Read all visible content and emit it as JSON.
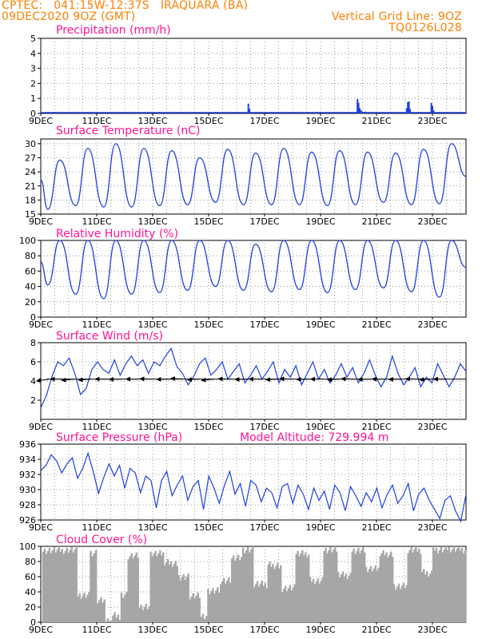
{
  "header": {
    "line1_left": "CPTEC:   041:15W-12:37S   IRAQUARA (BA)",
    "line2_left": "09DEC2020 9OZ (GMT)",
    "line1_right": "Vertical Grid Line: 9OZ",
    "line2_right": "TQ0126L028"
  },
  "colors": {
    "header": "#ff7f00",
    "title": "#ff1493",
    "series": "#1f3fe0",
    "cloud": "#a6a6a6",
    "wind_arrow": "#000000"
  },
  "x_axis": {
    "labels": [
      "9DEC",
      "11DEC",
      "13DEC",
      "15DEC",
      "17DEC",
      "19DEC",
      "21DEC",
      "23DEC"
    ],
    "start_day": 9,
    "end_day": 24.2,
    "label_step_days": 2
  },
  "chart_data": [
    {
      "id": "precip",
      "type": "bar",
      "title": "Precipitation (mm/h)",
      "ylim": [
        0,
        5
      ],
      "yticks": [
        0,
        1,
        2,
        3,
        4,
        5
      ],
      "bars": [
        {
          "day": 16.42,
          "value": 0.65
        },
        {
          "day": 16.46,
          "value": 0.3
        },
        {
          "day": 20.32,
          "value": 0.95
        },
        {
          "day": 20.36,
          "value": 0.7
        },
        {
          "day": 20.4,
          "value": 0.35
        },
        {
          "day": 20.46,
          "value": 0.2
        },
        {
          "day": 20.6,
          "value": 0.12
        },
        {
          "day": 22.08,
          "value": 0.35
        },
        {
          "day": 22.12,
          "value": 0.75
        },
        {
          "day": 22.16,
          "value": 0.8
        },
        {
          "day": 22.2,
          "value": 0.3
        },
        {
          "day": 22.96,
          "value": 0.7
        },
        {
          "day": 23.0,
          "value": 0.5
        },
        {
          "day": 23.04,
          "value": 0.2
        }
      ]
    },
    {
      "id": "temp",
      "type": "line",
      "title": "Surface Temperature (nC)",
      "ylim": [
        15,
        31
      ],
      "yticks": [
        15,
        18,
        21,
        24,
        27,
        30
      ],
      "maxima": [
        26.5,
        29,
        30,
        29,
        28.5,
        27,
        28.8,
        28,
        29,
        28.2,
        28.5,
        28.2,
        28,
        28.8,
        30,
        28.5
      ],
      "minima": [
        16,
        16.8,
        16.5,
        16.5,
        16.8,
        17,
        17.5,
        17,
        17,
        17,
        16.8,
        17,
        17.5,
        17,
        17.2,
        17.5
      ]
    },
    {
      "id": "rh",
      "type": "line",
      "title": "Relative Humidity (%)",
      "ylim": [
        0,
        100
      ],
      "yticks": [
        0,
        20,
        40,
        60,
        80,
        100
      ],
      "maxima": [
        100,
        100,
        100,
        100,
        100,
        100,
        100,
        95,
        100,
        100,
        100,
        100,
        100,
        100,
        100,
        100
      ],
      "minima": [
        42,
        30,
        24,
        30,
        32,
        35,
        40,
        35,
        33,
        36,
        32,
        36,
        38,
        33,
        26,
        30
      ]
    },
    {
      "id": "wind",
      "type": "line",
      "title": "Surface Wind (m/s)",
      "ylim": [
        0,
        8
      ],
      "yticks": [
        2,
        4,
        6,
        8
      ],
      "values": [
        1.2,
        2.5,
        4.5,
        6,
        5.6,
        6.4,
        4.8,
        2.6,
        3.2,
        5.2,
        6,
        5.2,
        4.8,
        6.2,
        4.6,
        5.8,
        6.6,
        5.6,
        6.2,
        4.8,
        6,
        5.6,
        6.6,
        7.4,
        5.5,
        4.8,
        3.6,
        4.5,
        5.8,
        6.4,
        4.6,
        5.2,
        6,
        4.2,
        5,
        5.8,
        3.8,
        4.6,
        5.6,
        4.2,
        5,
        6,
        3.8,
        5.2,
        4.4,
        5.6,
        3.6,
        4.8,
        6,
        4.2,
        5.2,
        3.8,
        4.6,
        5.8,
        4.4,
        5.4,
        3.8,
        4.8,
        6.2,
        4.6,
        3.4,
        4.4,
        6.6,
        4.8,
        3.6,
        4.4,
        5.4,
        3.4,
        4.4,
        3.8,
        5.8,
        4.6,
        3.4,
        4.4,
        5.8,
        5
      ],
      "vectors": [
        {
          "day": 9.3,
          "dir": 210
        },
        {
          "day": 9.8,
          "dir": 180
        },
        {
          "day": 10.2,
          "dir": 200
        },
        {
          "day": 10.8,
          "dir": 195
        },
        {
          "day": 11.4,
          "dir": 180
        },
        {
          "day": 11.9,
          "dir": 185
        },
        {
          "day": 12.5,
          "dir": 180
        },
        {
          "day": 13.0,
          "dir": 175
        },
        {
          "day": 13.6,
          "dir": 185
        },
        {
          "day": 14.1,
          "dir": 170
        },
        {
          "day": 14.7,
          "dir": 190
        },
        {
          "day": 15.2,
          "dir": 200
        },
        {
          "day": 15.8,
          "dir": 175
        },
        {
          "day": 16.4,
          "dir": 185
        },
        {
          "day": 16.9,
          "dir": 180
        },
        {
          "day": 17.5,
          "dir": 190
        },
        {
          "day": 18.0,
          "dir": 175
        },
        {
          "day": 18.6,
          "dir": 185
        },
        {
          "day": 19.1,
          "dir": 180
        },
        {
          "day": 19.7,
          "dir": 190
        },
        {
          "day": 20.2,
          "dir": 175
        },
        {
          "day": 20.8,
          "dir": 185
        },
        {
          "day": 21.3,
          "dir": 180
        },
        {
          "day": 21.9,
          "dir": 185
        },
        {
          "day": 22.5,
          "dir": 175
        },
        {
          "day": 23.0,
          "dir": 190
        },
        {
          "day": 23.5,
          "dir": 180
        }
      ]
    },
    {
      "id": "pressure",
      "type": "line",
      "title": "Surface Pressure (hPa)",
      "annotation": "Model Altitude: 729.994 m",
      "ylim": [
        926,
        936
      ],
      "yticks": [
        926,
        928,
        930,
        932,
        934,
        936
      ],
      "values": [
        932.5,
        933.2,
        934.6,
        933.8,
        932.2,
        933.4,
        934.2,
        931.5,
        932.8,
        934.8,
        932.4,
        929.5,
        931.6,
        933.4,
        931.8,
        933.2,
        930.2,
        932.8,
        932.2,
        929.6,
        931.8,
        931.2,
        927.6,
        931.2,
        932.4,
        929.2,
        930.6,
        931.8,
        928.6,
        930.4,
        931.2,
        927.4,
        931.8,
        930.2,
        928.2,
        930.6,
        932.4,
        929.4,
        930.8,
        927.8,
        931.2,
        930.6,
        928.4,
        930.2,
        929.6,
        927.6,
        930.4,
        930.8,
        928.2,
        930.6,
        929.4,
        927.4,
        930.2,
        928.6,
        929.8,
        927.4,
        930.6,
        929.6,
        927.2,
        930.4,
        929.2,
        927.8,
        929.6,
        928.4,
        930.2,
        927.6,
        929.4,
        930.6,
        928.2,
        929.2,
        930.8,
        927.2,
        929.4,
        930.2,
        928.6,
        927.4,
        926.2,
        928.6,
        929.2,
        927.2,
        925.8,
        929.4
      ]
    },
    {
      "id": "cloud",
      "type": "area",
      "title": "Cloud Cover (%)",
      "ylim": [
        0,
        100
      ],
      "yticks": [
        0,
        20,
        40,
        60,
        80,
        100
      ],
      "segments": [
        {
          "from": 9.05,
          "to": 10.3,
          "value": 95
        },
        {
          "from": 10.3,
          "to": 10.75,
          "value": 35
        },
        {
          "from": 10.75,
          "to": 11.0,
          "value": 90
        },
        {
          "from": 11.0,
          "to": 11.3,
          "value": 30
        },
        {
          "from": 11.3,
          "to": 11.55,
          "value": 3
        },
        {
          "from": 11.55,
          "to": 11.85,
          "value": 8
        },
        {
          "from": 11.85,
          "to": 12.1,
          "value": 35
        },
        {
          "from": 12.1,
          "to": 12.5,
          "value": 88
        },
        {
          "from": 12.5,
          "to": 12.9,
          "value": 20
        },
        {
          "from": 12.9,
          "to": 13.4,
          "value": 90
        },
        {
          "from": 13.4,
          "to": 13.9,
          "value": 78
        },
        {
          "from": 13.9,
          "to": 14.3,
          "value": 60
        },
        {
          "from": 14.3,
          "to": 14.7,
          "value": 35
        },
        {
          "from": 14.7,
          "to": 14.95,
          "value": 8
        },
        {
          "from": 14.95,
          "to": 15.4,
          "value": 42
        },
        {
          "from": 15.4,
          "to": 15.8,
          "value": 55
        },
        {
          "from": 15.8,
          "to": 16.2,
          "value": 85
        },
        {
          "from": 16.2,
          "to": 16.6,
          "value": 95
        },
        {
          "from": 16.6,
          "to": 17.1,
          "value": 50
        },
        {
          "from": 17.1,
          "to": 17.6,
          "value": 75
        },
        {
          "from": 17.6,
          "to": 18.1,
          "value": 45
        },
        {
          "from": 18.1,
          "to": 18.6,
          "value": 90
        },
        {
          "from": 18.6,
          "to": 19.1,
          "value": 55
        },
        {
          "from": 19.1,
          "to": 19.6,
          "value": 95
        },
        {
          "from": 19.6,
          "to": 20.1,
          "value": 62
        },
        {
          "from": 20.1,
          "to": 20.6,
          "value": 95
        },
        {
          "from": 20.6,
          "to": 21.1,
          "value": 70
        },
        {
          "from": 21.1,
          "to": 21.6,
          "value": 90
        },
        {
          "from": 21.6,
          "to": 22.1,
          "value": 48
        },
        {
          "from": 22.1,
          "to": 22.6,
          "value": 95
        },
        {
          "from": 22.6,
          "to": 23.0,
          "value": 65
        },
        {
          "from": 23.0,
          "to": 23.5,
          "value": 96
        },
        {
          "from": 23.5,
          "to": 24.2,
          "value": 96
        }
      ]
    }
  ]
}
